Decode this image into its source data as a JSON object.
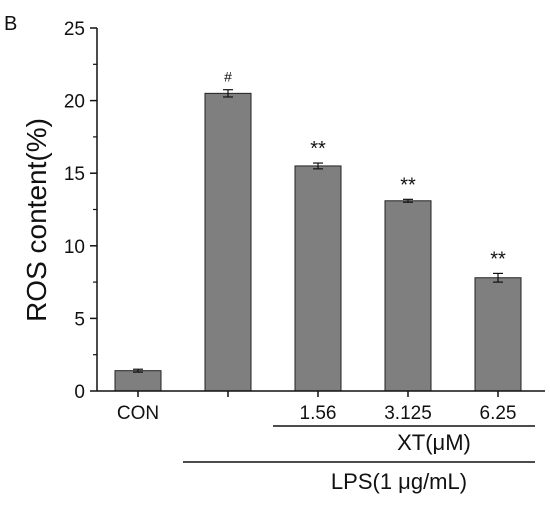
{
  "panel_label": "B",
  "chart_data": {
    "type": "bar",
    "ylabel": "ROS content(%)",
    "ylim": [
      0,
      25
    ],
    "yticks": [
      0,
      5,
      10,
      15,
      20,
      25
    ],
    "bar_color": "#7f7f7f",
    "categories": [
      "CON",
      "",
      "1.56",
      "3.125",
      "6.25"
    ],
    "values": [
      1.4,
      20.5,
      15.5,
      13.1,
      7.8
    ],
    "errors": [
      0.1,
      0.25,
      0.2,
      0.1,
      0.3
    ],
    "annotations": [
      "",
      "#",
      "**",
      "**",
      "**"
    ],
    "group_labels": [
      {
        "label": "XT(μM)",
        "spans": [
          2,
          4
        ]
      },
      {
        "label": "LPS(1 μg/mL)",
        "spans": [
          1,
          4
        ]
      }
    ]
  }
}
